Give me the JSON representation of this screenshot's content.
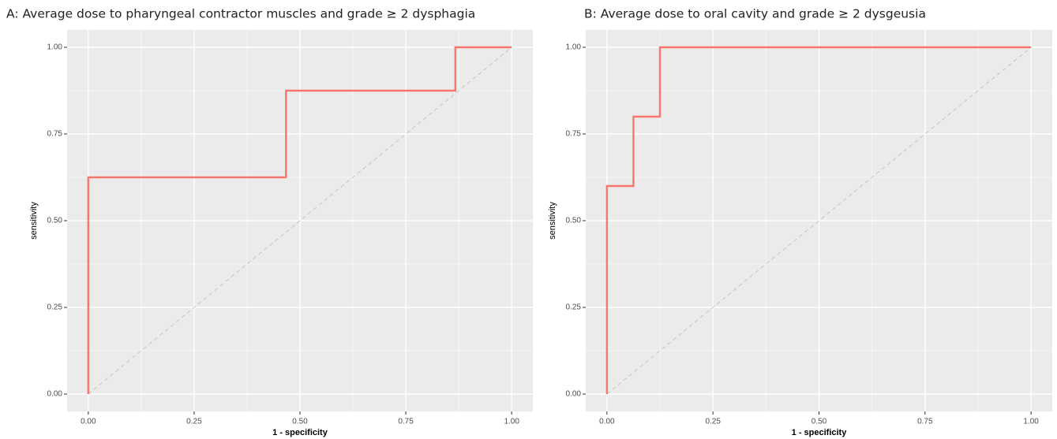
{
  "chart_data": [
    {
      "type": "line",
      "title": "A: Average dose to pharyngeal contractor muscles and grade ≥ 2 dysphagia",
      "x_label": "1 - specificity",
      "y_label": "sensitivity",
      "x": [
        0,
        0,
        0.467,
        0.467,
        0.867,
        0.867,
        1
      ],
      "values": [
        0,
        0.625,
        0.625,
        0.875,
        0.875,
        1,
        1
      ],
      "color": "#f8766d",
      "xlim": [
        -0.05,
        1.05
      ],
      "ylim": [
        -0.05,
        1.05
      ],
      "xticks": [
        {
          "value": 0,
          "label": "0.00"
        },
        {
          "value": 0.25,
          "label": "0.25"
        },
        {
          "value": 0.5,
          "label": "0.50"
        },
        {
          "value": 0.75,
          "label": "0.75"
        },
        {
          "value": 1,
          "label": "1.00"
        }
      ],
      "yticks": [
        {
          "value": 0,
          "label": "0.00"
        },
        {
          "value": 0.25,
          "label": "0.25"
        },
        {
          "value": 0.5,
          "label": "0.50"
        },
        {
          "value": 0.75,
          "label": "0.75"
        },
        {
          "value": 1,
          "label": "1.00"
        }
      ],
      "grid": true
    },
    {
      "type": "line",
      "title": "B: Average dose to oral cavity and grade ≥ 2 dysgeusia",
      "x_label": "1 - specificity",
      "y_label": "sensitivity",
      "x": [
        0,
        0,
        0.0625,
        0.0625,
        0.125,
        0.125,
        1
      ],
      "values": [
        0,
        0.6,
        0.6,
        0.8,
        0.8,
        1,
        1
      ],
      "color": "#f8766d",
      "xlim": [
        -0.05,
        1.05
      ],
      "ylim": [
        -0.05,
        1.05
      ],
      "xticks": [
        {
          "value": 0,
          "label": "0.00"
        },
        {
          "value": 0.25,
          "label": "0.25"
        },
        {
          "value": 0.5,
          "label": "0.50"
        },
        {
          "value": 0.75,
          "label": "0.75"
        },
        {
          "value": 1,
          "label": "1.00"
        }
      ],
      "yticks": [
        {
          "value": 0,
          "label": "0.00"
        },
        {
          "value": 0.25,
          "label": "0.25"
        },
        {
          "value": 0.5,
          "label": "0.50"
        },
        {
          "value": 0.75,
          "label": "0.75"
        },
        {
          "value": 1,
          "label": "1.00"
        }
      ],
      "grid": true
    }
  ]
}
